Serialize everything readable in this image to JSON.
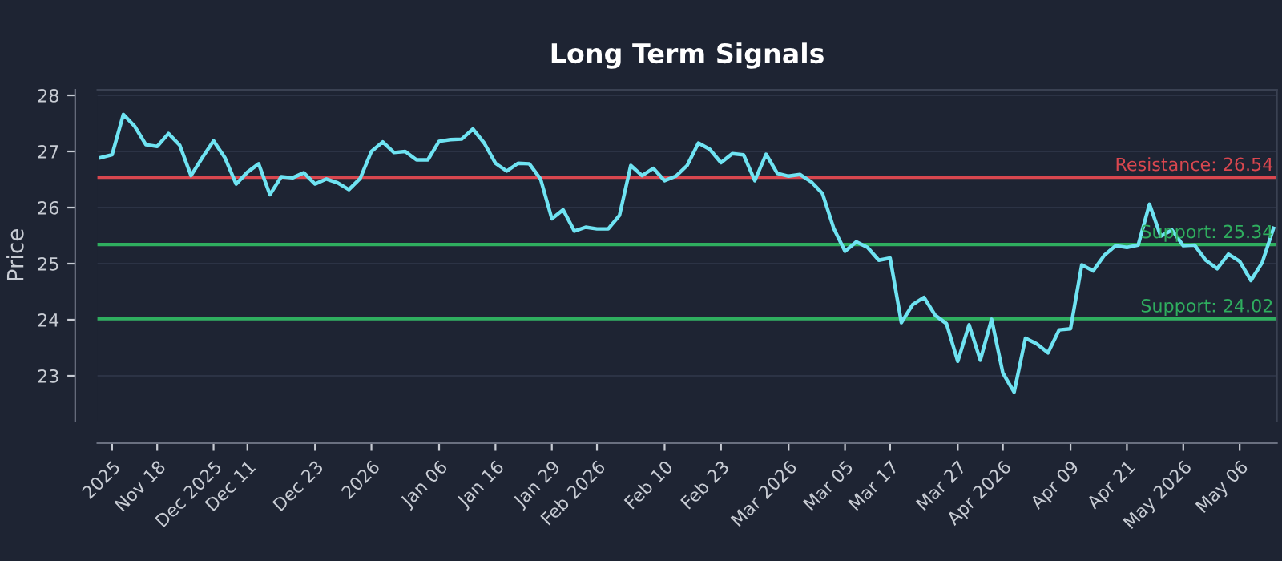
{
  "chart_data": {
    "type": "line",
    "title": "Long Term Signals",
    "ylabel": "Price",
    "categories": [
      null,
      "2025",
      null,
      null,
      null,
      "Nov 18",
      null,
      null,
      null,
      null,
      "Dec 2025",
      null,
      null,
      "Dec 11",
      null,
      null,
      null,
      null,
      null,
      "Dec 23",
      null,
      null,
      null,
      null,
      "2026",
      null,
      null,
      null,
      null,
      null,
      "Jan 06",
      null,
      null,
      null,
      null,
      "Jan 16",
      null,
      null,
      null,
      null,
      "Jan 29",
      null,
      null,
      null,
      "Feb 2026",
      null,
      null,
      null,
      null,
      null,
      "Feb 10",
      null,
      null,
      null,
      null,
      "Feb 23",
      null,
      null,
      null,
      null,
      null,
      "Mar 2026",
      null,
      null,
      null,
      null,
      "Mar 05",
      null,
      null,
      null,
      "Mar 17",
      null,
      null,
      null,
      null,
      null,
      "Mar 27",
      null,
      null,
      null,
      "Apr 2026",
      null,
      null,
      null,
      null,
      null,
      "Apr 09",
      null,
      null,
      null,
      null,
      "Apr 21",
      null,
      null,
      null,
      null,
      "May 2026",
      null,
      null,
      null,
      null,
      "May 06",
      null,
      null,
      null
    ],
    "series": [
      {
        "color": "#6fe3f2",
        "values": [
          26.89,
          26.94,
          27.66,
          27.45,
          27.12,
          27.09,
          27.32,
          27.11,
          26.57,
          26.89,
          27.19,
          26.89,
          26.42,
          26.63,
          26.78,
          26.23,
          26.55,
          26.53,
          26.62,
          26.42,
          26.51,
          26.44,
          26.32,
          26.52,
          27.0,
          27.17,
          26.98,
          27.0,
          26.85,
          26.85,
          27.18,
          27.21,
          27.22,
          27.4,
          27.15,
          26.79,
          26.65,
          26.79,
          26.78,
          26.51,
          25.8,
          25.96,
          25.58,
          25.65,
          25.62,
          25.62,
          25.86,
          26.75,
          26.57,
          26.7,
          26.48,
          26.56,
          26.75,
          27.15,
          27.04,
          26.8,
          26.96,
          26.94,
          26.48,
          26.95,
          26.61,
          26.56,
          26.59,
          26.46,
          26.25,
          25.63,
          25.22,
          25.39,
          25.29,
          25.06,
          25.1,
          23.95,
          24.27,
          24.4,
          24.08,
          23.93,
          23.26,
          23.91,
          23.28,
          24.01,
          23.05,
          22.71,
          23.67,
          23.57,
          23.41,
          23.82,
          23.84,
          24.98,
          24.87,
          25.15,
          25.32,
          25.29,
          25.33,
          26.06,
          25.49,
          25.6,
          25.32,
          25.33,
          25.06,
          24.91,
          25.17,
          25.04,
          24.7,
          25.02,
          25.63
        ]
      }
    ],
    "ylim": [
      22.2,
      28.1
    ],
    "yticks": [
      23,
      24,
      25,
      26,
      27,
      28
    ],
    "ref_lines": [
      {
        "axis": "y",
        "value": 26.54,
        "label": "Resistance: 26.54",
        "color": "#d9474f"
      },
      {
        "axis": "y",
        "value": 25.34,
        "label": "Support: 25.34",
        "color": "#2fae5f"
      },
      {
        "axis": "y",
        "value": 24.02,
        "label": "Support: 24.02",
        "color": "#2fae5f"
      }
    ],
    "grid": "y",
    "marker": "none",
    "line_style": "solid"
  }
}
